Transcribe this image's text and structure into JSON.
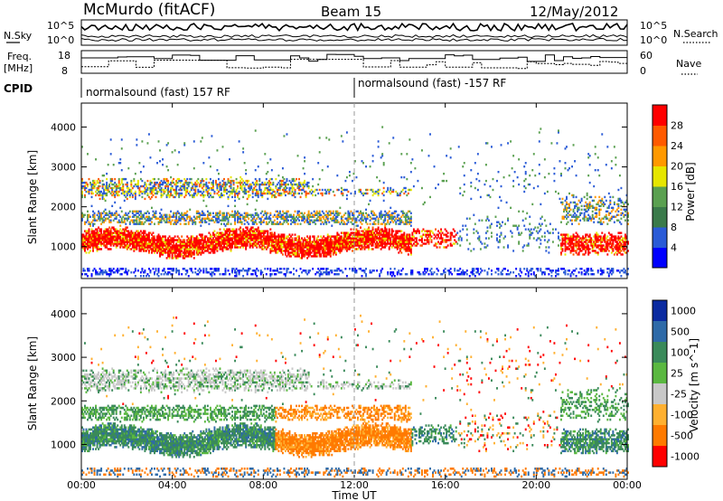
{
  "header": {
    "station": "McMurdo (fitACF)",
    "beam": "Beam 15",
    "date": "12/May/2012"
  },
  "small_panels": {
    "nsky_label": "N.Sky",
    "nsearch_label": "N.Search",
    "freq_label_1": "Freq.",
    "freq_label_2": "[MHz]",
    "nave_label": "Nave",
    "cpid_label": "CPID",
    "nsky_ticks": [
      "10^5",
      "10^0"
    ],
    "nsearch_ticks": [
      "10^5",
      "10^0"
    ],
    "freq_ticks": [
      "18",
      "8"
    ],
    "nave_ticks": [
      "60",
      "0"
    ],
    "cpid_seg1": "normalsound (fast) 157 RF",
    "cpid_seg2": "normalsound (fast) -157 RF",
    "cpid_split_time": 12
  },
  "chart_data": [
    {
      "type": "heatmap",
      "parameter": "Power",
      "ylabel": "Slant Range [km]",
      "xlabel": "",
      "ylim": [
        200,
        4600
      ],
      "yticks": [
        "1000",
        "2000",
        "3000",
        "4000"
      ],
      "colorbar_label": "Power [dB]",
      "colorbar_ticks": [
        "4",
        "8",
        "12",
        "16",
        "20",
        "24",
        "28"
      ],
      "colors": [
        "#0000ff",
        "#2a5bd7",
        "#3a7a4a",
        "#5aa050",
        "#e6e600",
        "#ff9900",
        "#ff5a00",
        "#ff0000"
      ]
    },
    {
      "type": "heatmap",
      "parameter": "Velocity",
      "ylabel": "Slant Range [km]",
      "xlabel": "Time UT",
      "ylim": [
        200,
        4600
      ],
      "yticks": [
        "1000",
        "2000",
        "3000",
        "4000"
      ],
      "xticks": [
        "00:00",
        "04:00",
        "08:00",
        "12:00",
        "16:00",
        "20:00",
        "00:00"
      ],
      "xlim": [
        0,
        24
      ],
      "colorbar_label": "Velocity [m s^-1]",
      "colorbar_ticks": [
        "1000",
        "500",
        "100",
        "25",
        "-25",
        "-100",
        "-500",
        "-1000"
      ],
      "colors": [
        "#0a2aa0",
        "#2e6aa8",
        "#3a8a5a",
        "#5ab840",
        "#c8c8c8",
        "#ffb030",
        "#ff7a00",
        "#ff0000"
      ]
    }
  ]
}
